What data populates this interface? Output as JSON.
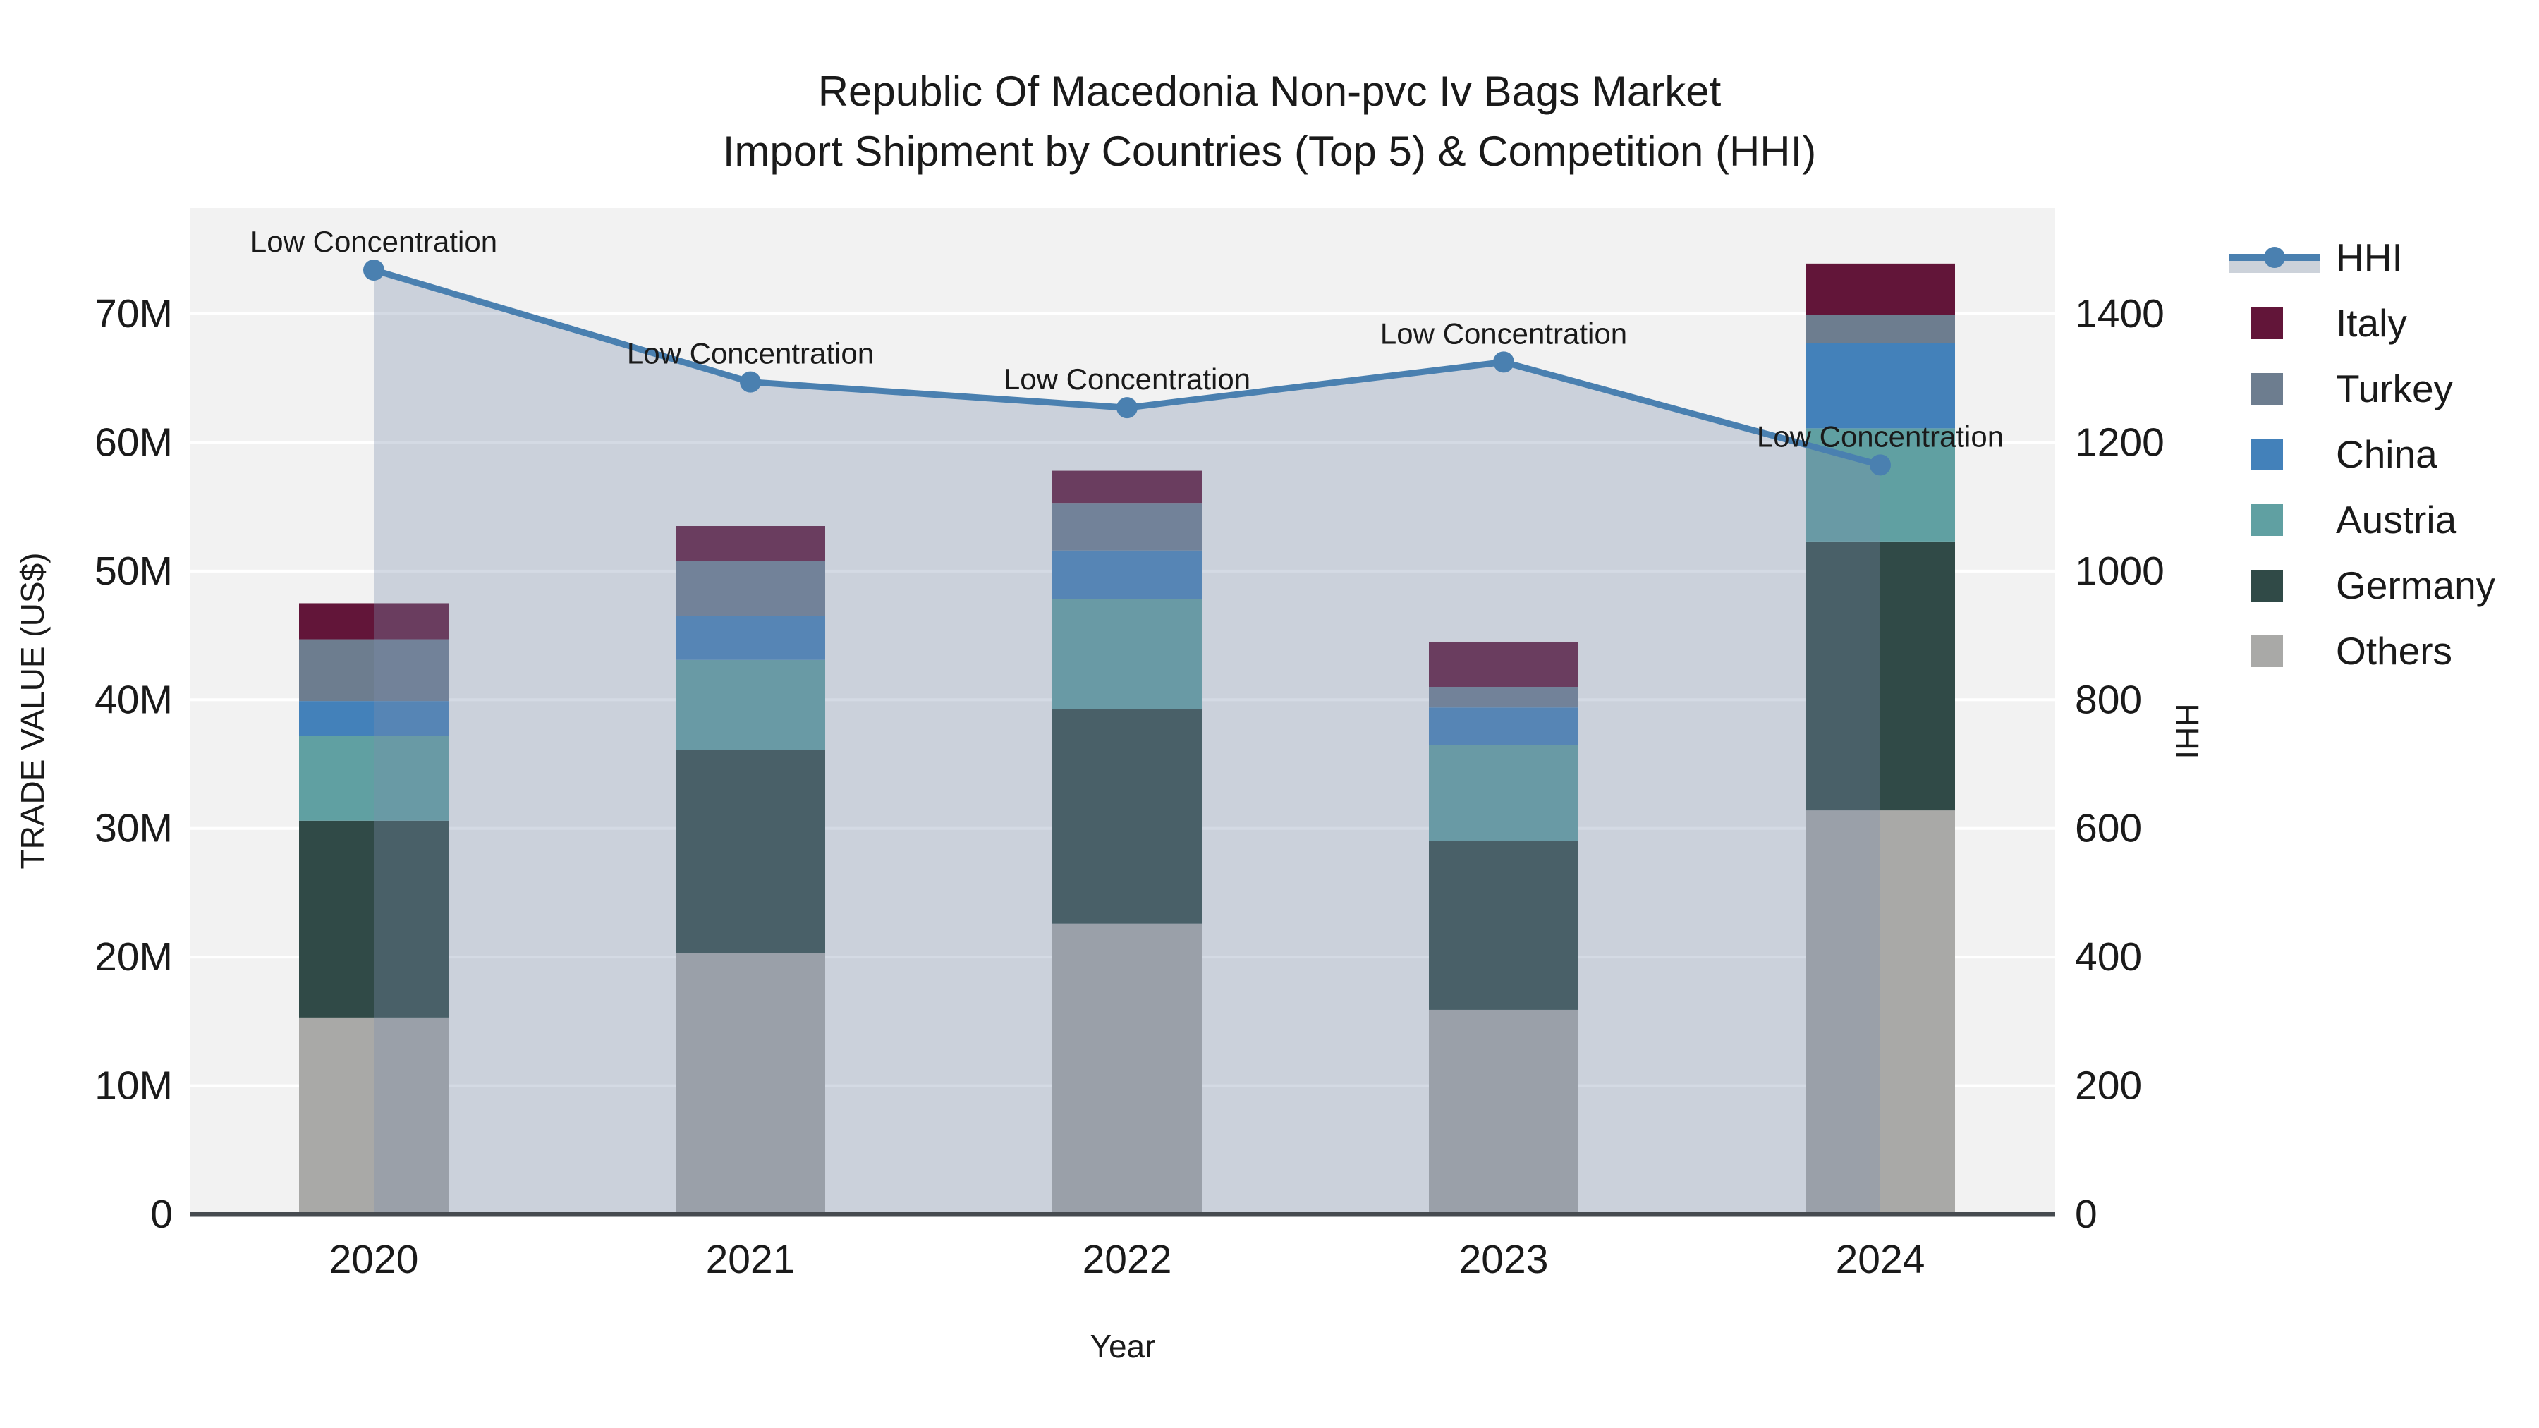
{
  "title": {
    "line1": "Republic Of Macedonia Non-pvc Iv Bags Market",
    "line2": "Import Shipment by Countries (Top 5) & Competition (HHI)"
  },
  "axes": {
    "y_left": {
      "label": "TRADE VALUE (US$)",
      "tick_labels": [
        "0",
        "10M",
        "20M",
        "30M",
        "40M",
        "50M",
        "60M",
        "70M"
      ],
      "tick_values_millions": [
        0,
        10,
        20,
        30,
        40,
        50,
        60,
        70
      ]
    },
    "y_right": {
      "label": "HHI",
      "tick_labels": [
        "0",
        "200",
        "400",
        "600",
        "800",
        "1000",
        "1200",
        "1400"
      ],
      "tick_values": [
        0,
        200,
        400,
        600,
        800,
        1000,
        1200,
        1400
      ]
    },
    "x": {
      "label": "Year",
      "categories": [
        "2020",
        "2021",
        "2022",
        "2023",
        "2024"
      ]
    }
  },
  "legend": {
    "items": [
      {
        "label": "HHI",
        "type": "line",
        "color": "#4a80b0"
      },
      {
        "label": "Italy",
        "type": "square",
        "color": "#621539"
      },
      {
        "label": "Turkey",
        "type": "square",
        "color": "#6d7d8f"
      },
      {
        "label": "China",
        "type": "square",
        "color": "#4381ba"
      },
      {
        "label": "Austria",
        "type": "square",
        "color": "#60a0a2"
      },
      {
        "label": "Germany",
        "type": "square",
        "color": "#304a47"
      },
      {
        "label": "Others",
        "type": "square",
        "color": "#a9a9a7"
      }
    ]
  },
  "annotations": {
    "label": "Low Concentration",
    "applies_to_each_point": true
  },
  "chart_data": {
    "type": "bar+line",
    "title": "Republic Of Macedonia Non-pvc Iv Bags Market — Import Shipment by Countries (Top 5) & Competition (HHI)",
    "categories": [
      "2020",
      "2021",
      "2022",
      "2023",
      "2024"
    ],
    "bar_units": "million US$",
    "stack_order_bottom_to_top": [
      "Others",
      "Germany",
      "Austria",
      "China",
      "Turkey",
      "Italy"
    ],
    "series": [
      {
        "name": "Others",
        "color": "#a9a9a7",
        "values": [
          15.3,
          20.3,
          22.6,
          15.9,
          31.4
        ]
      },
      {
        "name": "Germany",
        "color": "#304a47",
        "values": [
          15.3,
          15.8,
          16.7,
          13.1,
          20.9
        ]
      },
      {
        "name": "Austria",
        "color": "#60a0a2",
        "values": [
          6.6,
          7.0,
          8.5,
          7.5,
          8.8
        ]
      },
      {
        "name": "China",
        "color": "#4381ba",
        "values": [
          2.7,
          3.4,
          3.8,
          2.9,
          6.6
        ]
      },
      {
        "name": "Turkey",
        "color": "#6d7d8f",
        "values": [
          4.8,
          4.3,
          3.7,
          1.6,
          2.2
        ]
      },
      {
        "name": "Italy",
        "color": "#621539",
        "values": [
          2.8,
          2.7,
          2.5,
          3.5,
          4.0
        ]
      }
    ],
    "bar_totals_millions": [
      47.5,
      53.5,
      57.8,
      44.5,
      73.9
    ],
    "line": {
      "name": "HHI",
      "axis": "right",
      "values": [
        1468,
        1294,
        1254,
        1325,
        1165
      ]
    },
    "ylim_left_millions": [
      0,
      78.2
    ],
    "ylim_right": [
      0,
      1564
    ],
    "grid": "horizontal-only",
    "legend_position": "right"
  },
  "colors": {
    "hhi_line": "#4a80b0",
    "hhi_area_fill": "rgba(124,142,172,0.33)",
    "hhi_area_legend_swatch": "#ccd2da",
    "plot_background": "#f2f2f2",
    "gridline": "#ffffff",
    "axis_line": "#464b50",
    "text": "#1a1a1a"
  }
}
